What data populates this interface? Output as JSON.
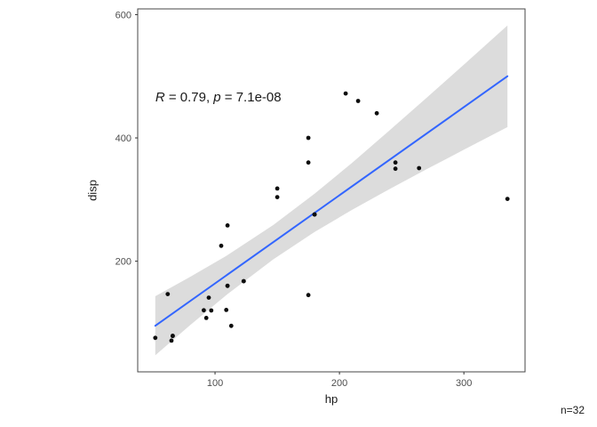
{
  "page": {
    "background": "#ffffff"
  },
  "chart_data": {
    "type": "scatter",
    "title": "",
    "xlabel": "hp",
    "ylabel": "disp",
    "caption": "n=32",
    "x_ticks": [
      {
        "label": "100",
        "value": 100
      },
      {
        "label": "200",
        "value": 200
      },
      {
        "label": "300",
        "value": 300
      }
    ],
    "y_ticks": [
      {
        "label": "200",
        "value": 200
      },
      {
        "label": "400",
        "value": 400
      },
      {
        "label": "600",
        "value": 600
      }
    ],
    "xlim": [
      37.85,
      349.15
    ],
    "ylim": [
      20.5,
      609.3
    ],
    "grid": false,
    "legend": false,
    "point_color": "#0d0d0d",
    "line_color": "#3366FF",
    "ribbon_color": "#dcdcdc",
    "panel_border_color": "#474747",
    "points": [
      [
        110,
        160
      ],
      [
        110,
        160
      ],
      [
        93,
        108
      ],
      [
        110,
        258
      ],
      [
        175,
        360
      ],
      [
        105,
        225
      ],
      [
        245,
        360
      ],
      [
        62,
        146.7
      ],
      [
        95,
        140.8
      ],
      [
        123,
        167.6
      ],
      [
        123,
        167.6
      ],
      [
        180,
        275.8
      ],
      [
        180,
        275.8
      ],
      [
        180,
        275.8
      ],
      [
        205,
        472
      ],
      [
        215,
        460
      ],
      [
        230,
        440
      ],
      [
        66,
        78.7
      ],
      [
        52,
        75.7
      ],
      [
        65,
        71.1
      ],
      [
        97,
        120.1
      ],
      [
        150,
        318
      ],
      [
        150,
        304
      ],
      [
        245,
        350
      ],
      [
        175,
        400
      ],
      [
        66,
        79
      ],
      [
        91,
        120.3
      ],
      [
        113,
        95.1
      ],
      [
        264,
        351
      ],
      [
        175,
        145
      ],
      [
        335,
        301
      ],
      [
        109,
        121
      ]
    ],
    "regression": {
      "model": "linear",
      "slope": 1.4299,
      "intercept": 20.99,
      "x_start": 52,
      "x_end": 335
    },
    "ribbon": [
      {
        "x": 52,
        "lower": 47.3,
        "upper": 143.2
      },
      {
        "x": 80,
        "lower": 96.3,
        "upper": 174.5
      },
      {
        "x": 110,
        "lower": 146.6,
        "upper": 209.9
      },
      {
        "x": 146.7,
        "lower": 202.9,
        "upper": 258.6
      },
      {
        "x": 180,
        "lower": 247.3,
        "upper": 309.4
      },
      {
        "x": 210,
        "lower": 283.1,
        "upper": 359.4
      },
      {
        "x": 240,
        "lower": 316.7,
        "upper": 411.7
      },
      {
        "x": 270,
        "lower": 349.1,
        "upper": 465.0
      },
      {
        "x": 300,
        "lower": 380.9,
        "upper": 519.0
      },
      {
        "x": 335,
        "lower": 417.5,
        "upper": 582.5
      }
    ],
    "annotation": {
      "text": "R = 0.79, p = 7.1e-08",
      "r_var": "R",
      "r_eq": " = 0.79, ",
      "p_var": "p",
      "p_eq": " = 7.1e-08",
      "x": 52,
      "y": 462
    }
  }
}
